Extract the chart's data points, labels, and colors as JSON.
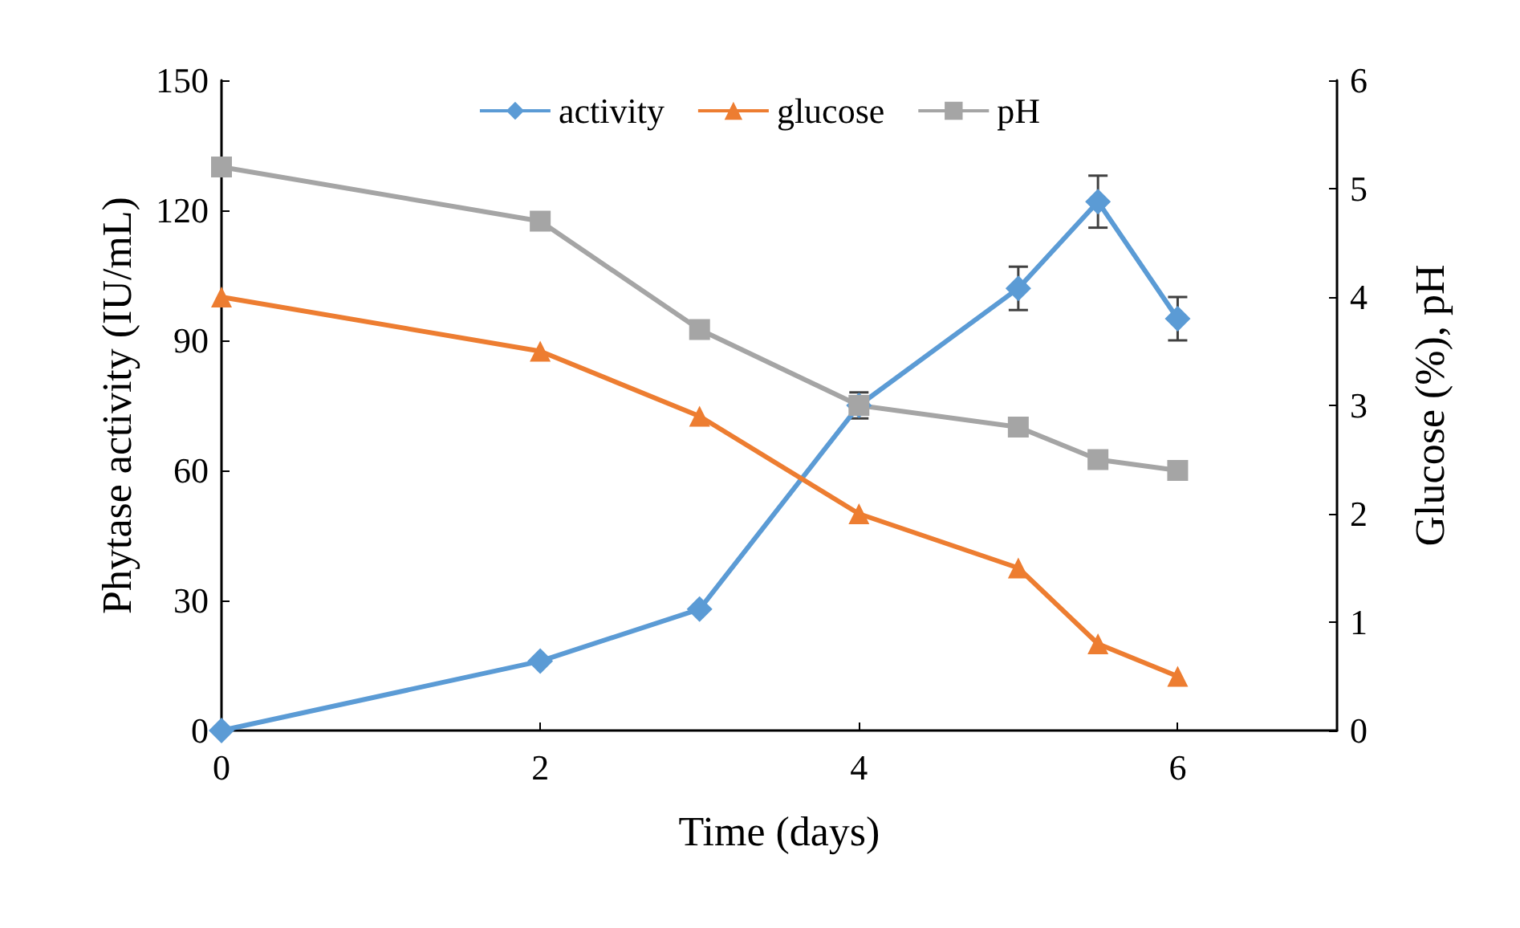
{
  "chart_data": {
    "type": "line",
    "xlabel": "Time (days)",
    "ylabel": "Phytase activity (IU/mL)",
    "y2label": "Glucose (%), pH",
    "x": [
      0,
      2,
      3,
      4,
      5,
      5.5,
      6
    ],
    "series": [
      {
        "name": "activity",
        "color": "#5b9bd5",
        "marker": "diamond",
        "values": [
          0,
          16,
          28,
          75,
          102,
          122,
          95
        ],
        "errors": [
          null,
          null,
          null,
          3,
          5,
          6,
          5
        ]
      },
      {
        "name": "glucose",
        "color": "#ed7d31",
        "marker": "triangle",
        "axis": "y2",
        "values": [
          4.0,
          3.5,
          2.9,
          2.0,
          1.5,
          0.8,
          0.5
        ]
      },
      {
        "name": "pH",
        "color": "#a5a5a5",
        "marker": "square",
        "axis": "y2",
        "values": [
          5.2,
          4.7,
          3.7,
          3.0,
          2.8,
          2.5,
          2.4
        ]
      }
    ],
    "xlim": [
      0,
      7
    ],
    "xticks": [
      0,
      2,
      4,
      6
    ],
    "ylim": [
      0,
      150
    ],
    "yticks": [
      0,
      30,
      60,
      90,
      120,
      150
    ],
    "y2lim": [
      0,
      6
    ],
    "y2ticks": [
      0,
      1,
      2,
      3,
      4,
      5,
      6
    ],
    "grid": false,
    "legend": "top",
    "line_style": "solid"
  }
}
